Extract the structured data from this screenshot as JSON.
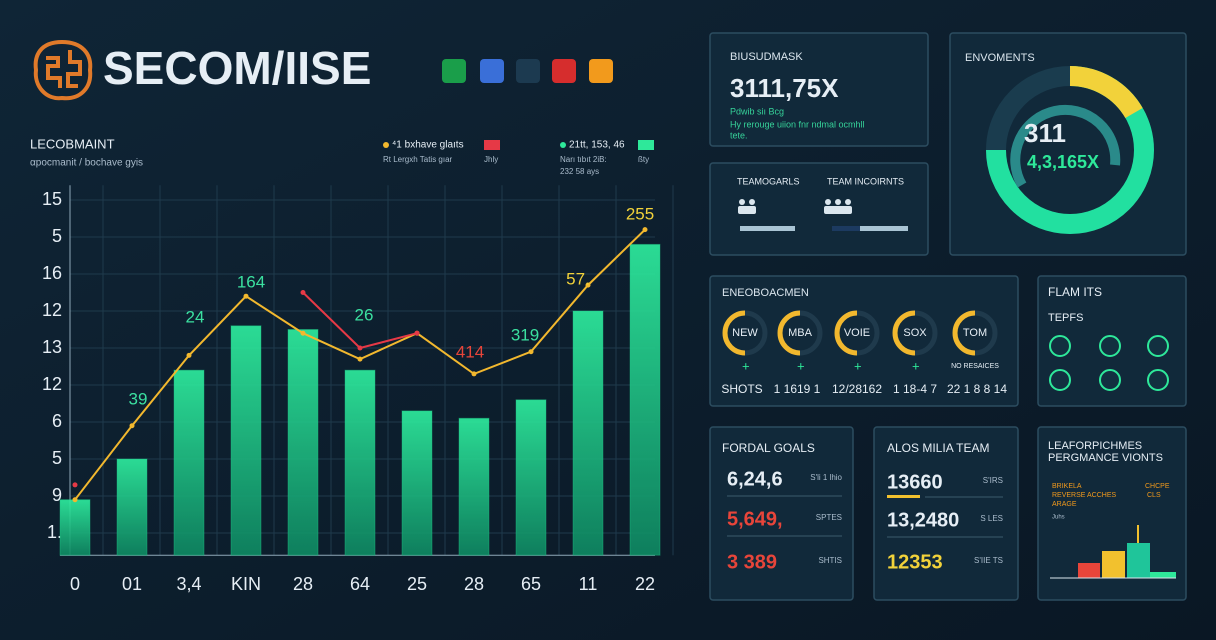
{
  "header": {
    "brand": "SECOM/IISE"
  },
  "chart_data": {
    "type": "bar",
    "title": "LECOBMAINT",
    "subtitle": "αpocmanit / bochave gyis",
    "legend": [
      {
        "label": "⁴1 bxhave glaıts",
        "note": "Rt Lergxh Tatis gıar",
        "extra": "Jhly",
        "color": "#e63946"
      },
      {
        "label": "21tt, 153, 46",
        "note": "Narı tıbıt 2iB:",
        "extra": "ßty",
        "more": "232 58 ays",
        "color": "#2ee89a"
      }
    ],
    "categories": [
      "0",
      "01",
      "3,4",
      "KIN",
      "28",
      "64",
      "25",
      "28",
      "65",
      "11",
      "22"
    ],
    "values": [
      1.9,
      3.0,
      5.4,
      6.6,
      6.5,
      5.4,
      4.3,
      4.1,
      4.6,
      7.0,
      8.8
    ],
    "color": "#1fd18c",
    "lines": [
      {
        "color": "#f2b82e",
        "values": [
          1.9,
          3.9,
          5.8,
          7.4,
          6.4,
          5.7,
          6.4,
          5.3,
          5.9,
          7.7,
          9.2
        ]
      },
      {
        "color": "#e63946",
        "values": [
          2.3,
          null,
          null,
          null,
          7.5,
          6.0,
          6.4,
          null,
          null,
          null,
          null
        ]
      }
    ],
    "annotations": [
      {
        "text": "39",
        "color": "#3be0a0"
      },
      {
        "text": "24",
        "color": "#3be0a0"
      },
      {
        "text": "164",
        "color": "#3be0a0"
      },
      {
        "text": "26",
        "color": "#3be0a0"
      },
      {
        "text": "414",
        "color": "#e8453a"
      },
      {
        "text": "319",
        "color": "#3be0a0"
      },
      {
        "text": "57.",
        "color": "#f2d23a"
      },
      {
        "text": "255",
        "color": "#f2d23a"
      }
    ],
    "ylim": [
      0.4,
      10.4
    ],
    "yticks": [
      {
        "value": 1,
        "label": "1."
      },
      {
        "value": 2,
        "label": "9"
      },
      {
        "value": 3,
        "label": "5"
      },
      {
        "value": 4,
        "label": "6"
      },
      {
        "value": 5,
        "label": "12"
      },
      {
        "value": 6,
        "label": "13"
      },
      {
        "value": 7,
        "label": "12"
      },
      {
        "value": 8,
        "label": "16"
      },
      {
        "value": 9,
        "label": "5"
      },
      {
        "value": 10,
        "label": "15"
      }
    ],
    "grid": true
  },
  "panels": {
    "business": {
      "label": "BIUSUDMASK",
      "value": "3111,75X",
      "caption": "Pdwib siı Bcg",
      "note": [
        "Hy rerouge uiion fnr ndmal ocmhll",
        "tete."
      ]
    },
    "teams": {
      "items": [
        "TEAMOGARLS",
        "TEAM INCOIRNTS"
      ]
    },
    "environments": {
      "label": "ENVOMENTS",
      "value": "311",
      "sub_value": "4,3,165X"
    },
    "engagement": {
      "label": "ENEOBOACMEN",
      "gauges": [
        "NEW",
        "MBA",
        "VOIE",
        "SOX",
        "TOM"
      ],
      "note": "NO RESAICES",
      "row": [
        "SHOTS",
        "1 1619 1",
        "12/28162",
        "1 18-4 7",
        "22 1 8 8 14"
      ]
    },
    "flamits": {
      "label": "FLAM ITS",
      "sublabel": "TEPFS"
    },
    "goals": {
      "label": "FORDAL GOALS",
      "rows": [
        {
          "value": "6,24,6",
          "note": "S'li 1 lhio"
        },
        {
          "value": "5,649,",
          "note": "SPTES"
        },
        {
          "value": "3 389",
          "note": "SHTIS"
        }
      ]
    },
    "team": {
      "label": "ALOS MILIA TEAM",
      "rows": [
        {
          "value": "13660",
          "note": "S'IRS"
        },
        {
          "value": "13,2480",
          "note": "S LES"
        },
        {
          "value": "12353",
          "note": "S'IIE TS"
        }
      ]
    },
    "performance": {
      "label": [
        "LEAFORPICHMES",
        "PERGMANCE VIONTS"
      ],
      "notes": [
        "BRIKELA",
        "CHCPE",
        "REVERSE ACCHES",
        "CLS",
        "ARAGE",
        "Juhs"
      ]
    }
  }
}
